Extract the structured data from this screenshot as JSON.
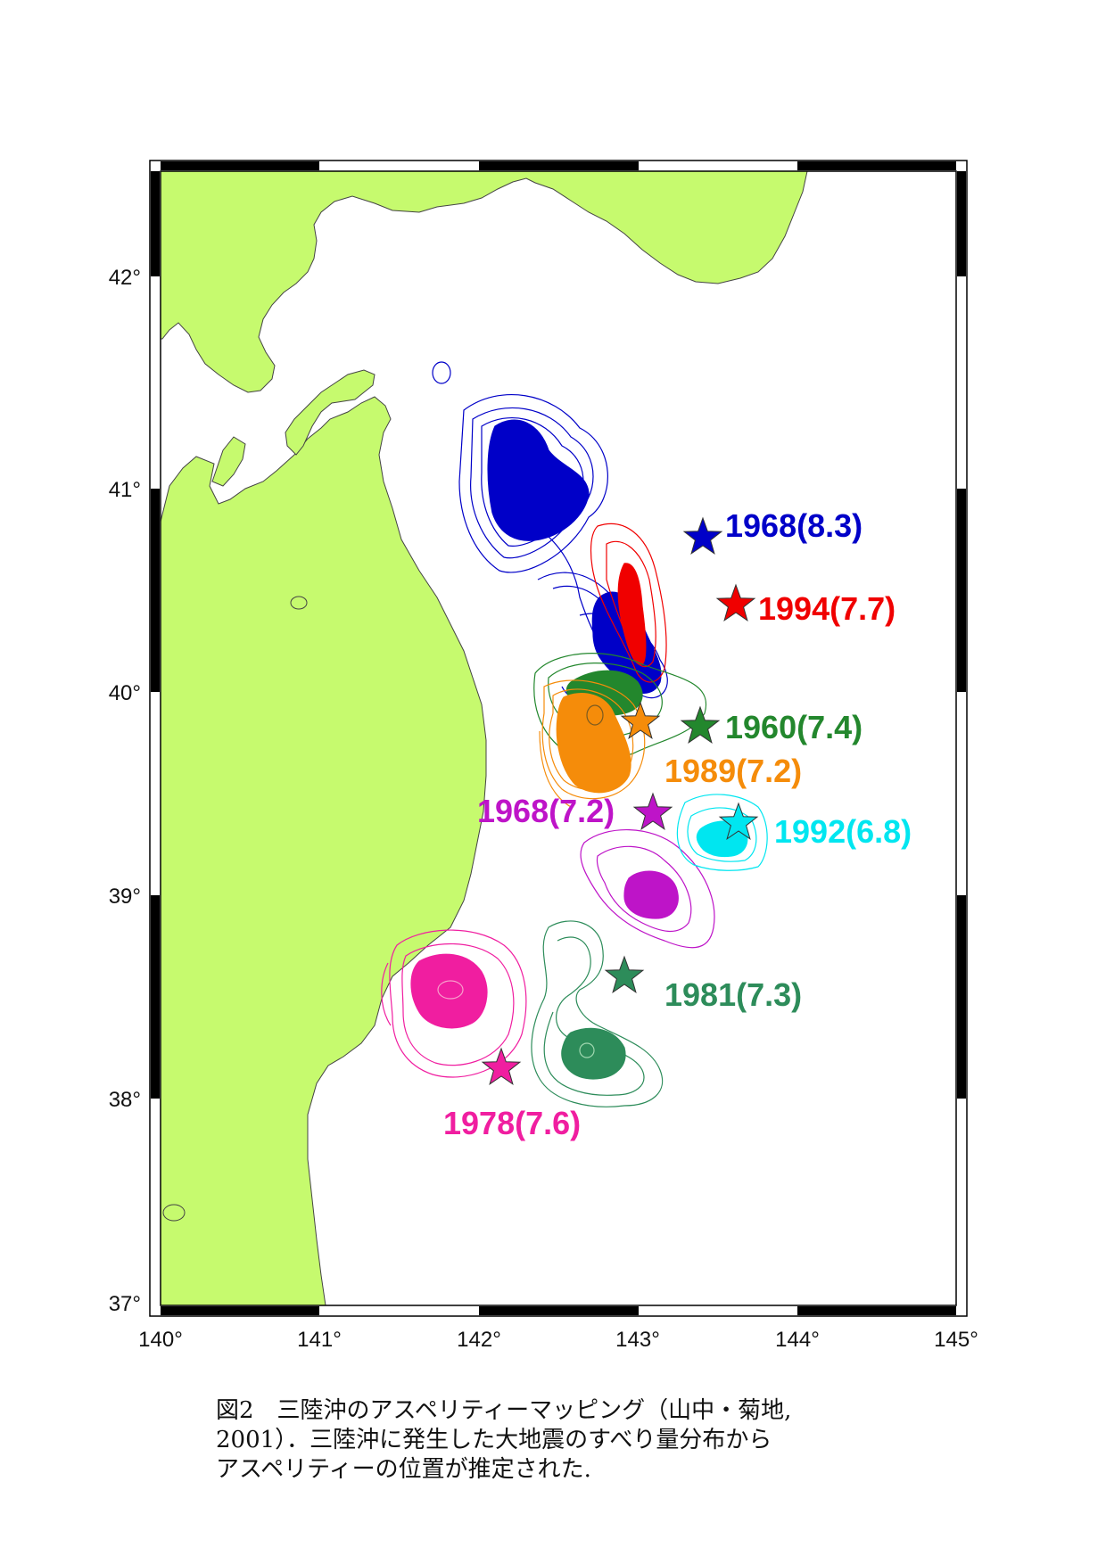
{
  "map": {
    "lon_ticks": [
      "140°",
      "141°",
      "142°",
      "143°",
      "144°",
      "145°"
    ],
    "lat_ticks": [
      "42°",
      "41°",
      "40°",
      "39°",
      "38°",
      "37°"
    ],
    "colors": {
      "land": "#c6fa6e",
      "ocean": "#ffffff",
      "frame": "#000000"
    },
    "earthquakes": [
      {
        "id": "1968-8.3",
        "label": "1968(8.3)",
        "color": "#0000c8",
        "icon": "star-icon"
      },
      {
        "id": "1994-7.7",
        "label": "1994(7.7)",
        "color": "#f00000",
        "icon": "star-icon"
      },
      {
        "id": "1960-7.4",
        "label": "1960(7.4)",
        "color": "#23872d",
        "icon": "star-icon"
      },
      {
        "id": "1989-7.2",
        "label": "1989(7.2)",
        "color": "#f58c0a",
        "icon": "star-icon"
      },
      {
        "id": "1968-7.2",
        "label": "1968(7.2)",
        "color": "#be14c8",
        "icon": "star-icon"
      },
      {
        "id": "1992-6.8",
        "label": "1992(6.8)",
        "color": "#00e6f0",
        "icon": "star-icon"
      },
      {
        "id": "1981-7.3",
        "label": "1981(7.3)",
        "color": "#2d8c5a",
        "icon": "star-icon"
      },
      {
        "id": "1978-7.6",
        "label": "1978(7.6)",
        "color": "#f01ea0",
        "icon": "star-icon"
      }
    ]
  },
  "caption": {
    "line1": "図2　三陸沖のアスペリティーマッピング（山中・菊地,",
    "line2": "2001）．三陸沖に発生した大地震のすべり量分布から",
    "line3": "アスペリティーの位置が推定された."
  }
}
